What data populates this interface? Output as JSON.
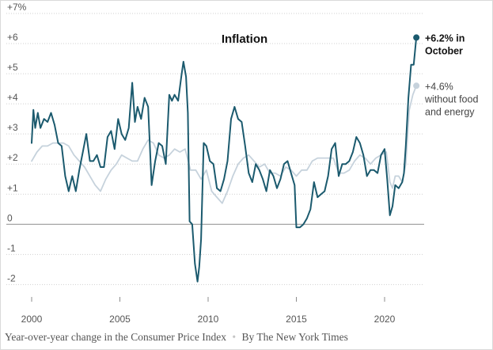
{
  "chart_data": {
    "type": "line",
    "title": "Inflation",
    "ylabel": "Year-over-year change in the Consumer Price Index",
    "credit": "By The New York Times",
    "ylim": [
      -2.2,
      7
    ],
    "xlim": [
      2000,
      2022.2
    ],
    "y_ticks": [
      {
        "value": 7,
        "label": "+7%"
      },
      {
        "value": 6,
        "label": "+6"
      },
      {
        "value": 5,
        "label": "+5"
      },
      {
        "value": 4,
        "label": "+4"
      },
      {
        "value": 3,
        "label": "+3"
      },
      {
        "value": 2,
        "label": "+2"
      },
      {
        "value": 1,
        "label": "+1"
      },
      {
        "value": 0,
        "label": "0"
      },
      {
        "value": -1,
        "label": "-1"
      },
      {
        "value": -2,
        "label": "-2"
      }
    ],
    "x_ticks": [
      {
        "value": 2000,
        "label": "2000"
      },
      {
        "value": 2005,
        "label": "2005"
      },
      {
        "value": 2010,
        "label": "2010"
      },
      {
        "value": 2015,
        "label": "2015"
      },
      {
        "value": 2020,
        "label": "2020"
      }
    ],
    "grid": true,
    "series": [
      {
        "name": "CPI",
        "color": "#1b5a6e",
        "x": [
          2000.0,
          2000.1,
          2000.2,
          2000.35,
          2000.5,
          2000.7,
          2000.9,
          2001.1,
          2001.3,
          2001.5,
          2001.7,
          2001.9,
          2002.1,
          2002.3,
          2002.5,
          2002.7,
          2002.9,
          2003.1,
          2003.3,
          2003.5,
          2003.7,
          2003.9,
          2004.1,
          2004.3,
          2004.5,
          2004.7,
          2004.9,
          2005.1,
          2005.3,
          2005.5,
          2005.7,
          2005.85,
          2006.0,
          2006.2,
          2006.4,
          2006.6,
          2006.8,
          2007.0,
          2007.2,
          2007.4,
          2007.6,
          2007.8,
          2007.95,
          2008.1,
          2008.3,
          2008.5,
          2008.6,
          2008.75,
          2008.85,
          2008.95,
          2009.1,
          2009.25,
          2009.4,
          2009.5,
          2009.6,
          2009.75,
          2009.9,
          2010.1,
          2010.3,
          2010.5,
          2010.7,
          2010.9,
          2011.1,
          2011.3,
          2011.5,
          2011.7,
          2011.9,
          2012.1,
          2012.3,
          2012.5,
          2012.7,
          2012.9,
          2013.1,
          2013.3,
          2013.5,
          2013.7,
          2013.9,
          2014.1,
          2014.3,
          2014.5,
          2014.7,
          2014.9,
          2015.0,
          2015.2,
          2015.4,
          2015.6,
          2015.8,
          2016.0,
          2016.2,
          2016.4,
          2016.6,
          2016.8,
          2017.0,
          2017.2,
          2017.4,
          2017.6,
          2017.8,
          2018.0,
          2018.2,
          2018.4,
          2018.6,
          2018.8,
          2019.0,
          2019.2,
          2019.4,
          2019.6,
          2019.8,
          2020.0,
          2020.15,
          2020.3,
          2020.45,
          2020.6,
          2020.8,
          2021.0,
          2021.1,
          2021.2,
          2021.35,
          2021.5,
          2021.65,
          2021.8
        ],
        "values": [
          2.7,
          3.8,
          3.2,
          3.7,
          3.2,
          3.5,
          3.4,
          3.7,
          3.3,
          2.7,
          2.6,
          1.6,
          1.1,
          1.6,
          1.1,
          1.8,
          2.4,
          3.0,
          2.1,
          2.1,
          2.3,
          1.9,
          1.9,
          2.9,
          3.1,
          2.5,
          3.5,
          3.0,
          2.8,
          3.2,
          4.7,
          3.4,
          3.9,
          3.5,
          4.2,
          3.9,
          1.3,
          2.1,
          2.7,
          2.6,
          2.0,
          4.3,
          4.1,
          4.3,
          4.1,
          5.0,
          5.4,
          4.9,
          3.7,
          0.1,
          0.0,
          -1.3,
          -1.9,
          -1.4,
          -0.5,
          2.7,
          2.6,
          2.1,
          2.0,
          1.2,
          1.1,
          1.5,
          2.1,
          3.5,
          3.9,
          3.5,
          3.4,
          2.6,
          1.7,
          1.4,
          2.0,
          1.8,
          1.5,
          1.1,
          1.8,
          1.6,
          1.2,
          1.5,
          2.0,
          2.1,
          1.7,
          1.3,
          -0.1,
          -0.1,
          0.0,
          0.2,
          0.5,
          1.4,
          0.9,
          1.0,
          1.1,
          1.6,
          2.5,
          2.7,
          1.6,
          2.0,
          2.0,
          2.1,
          2.4,
          2.9,
          2.7,
          2.3,
          1.6,
          1.8,
          1.8,
          1.7,
          2.3,
          2.5,
          1.5,
          0.3,
          0.6,
          1.3,
          1.2,
          1.4,
          1.7,
          2.6,
          4.2,
          5.3,
          5.3,
          6.2
        ],
        "annotation": {
          "lines": [
            "+6.2% in",
            "October"
          ]
        }
      },
      {
        "name": "CPI without food and energy",
        "color": "#c6d2dc",
        "x": [
          2000.0,
          2000.3,
          2000.6,
          2000.9,
          2001.2,
          2001.5,
          2001.8,
          2002.1,
          2002.4,
          2002.7,
          2003.0,
          2003.3,
          2003.6,
          2003.9,
          2004.2,
          2004.5,
          2004.8,
          2005.1,
          2005.4,
          2005.7,
          2006.0,
          2006.3,
          2006.6,
          2006.9,
          2007.2,
          2007.5,
          2007.8,
          2008.1,
          2008.4,
          2008.7,
          2009.0,
          2009.3,
          2009.6,
          2009.9,
          2010.2,
          2010.5,
          2010.8,
          2011.1,
          2011.4,
          2011.7,
          2012.0,
          2012.3,
          2012.6,
          2012.9,
          2013.2,
          2013.5,
          2013.8,
          2014.1,
          2014.4,
          2014.7,
          2015.0,
          2015.3,
          2015.6,
          2015.9,
          2016.2,
          2016.5,
          2016.8,
          2017.1,
          2017.4,
          2017.7,
          2018.0,
          2018.3,
          2018.6,
          2018.9,
          2019.2,
          2019.5,
          2019.8,
          2020.1,
          2020.3,
          2020.45,
          2020.6,
          2020.8,
          2021.0,
          2021.2,
          2021.4,
          2021.6,
          2021.8
        ],
        "values": [
          2.1,
          2.4,
          2.6,
          2.6,
          2.7,
          2.7,
          2.7,
          2.6,
          2.3,
          2.1,
          1.9,
          1.6,
          1.3,
          1.1,
          1.5,
          1.8,
          2.0,
          2.3,
          2.2,
          2.1,
          2.1,
          2.5,
          2.8,
          2.7,
          2.3,
          2.2,
          2.3,
          2.5,
          2.4,
          2.5,
          1.8,
          1.8,
          1.5,
          1.8,
          1.1,
          0.9,
          0.7,
          1.1,
          1.6,
          2.0,
          2.2,
          2.3,
          2.1,
          1.9,
          2.0,
          1.7,
          1.7,
          1.6,
          1.9,
          1.8,
          1.6,
          1.8,
          1.8,
          2.1,
          2.2,
          2.2,
          2.2,
          2.2,
          1.7,
          1.7,
          1.8,
          2.1,
          2.3,
          2.2,
          2.0,
          2.2,
          2.3,
          2.4,
          1.4,
          1.2,
          1.6,
          1.6,
          1.4,
          2.0,
          3.8,
          4.3,
          4.6
        ],
        "annotation": {
          "lines": [
            "+4.6%",
            "without food",
            "and energy"
          ]
        }
      }
    ]
  },
  "caption": {
    "description": "Year-over-year change in the Consumer Price Index",
    "separator": "•",
    "credit": "By The New York Times"
  }
}
